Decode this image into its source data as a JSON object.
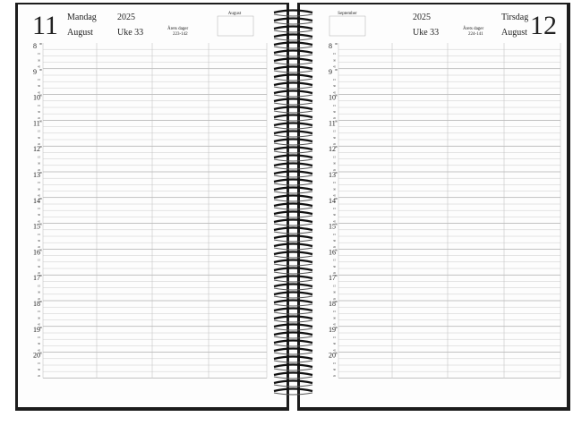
{
  "left": {
    "day": "11",
    "weekday": "Mandag",
    "month": "August",
    "year": "2025",
    "week": "Uke 33",
    "days_label": "Årets dager",
    "days": "223-142",
    "mini_month": "August"
  },
  "right": {
    "day": "12",
    "weekday": "Tirsdag",
    "month": "August",
    "year": "2025",
    "week": "Uke 33",
    "days_label": "Årets dager",
    "days": "224-141",
    "mini_month": "September"
  },
  "hours": [
    "8",
    "9",
    "10",
    "11",
    "12",
    "13",
    "14",
    "15",
    "16",
    "17",
    "18",
    "19",
    "20"
  ],
  "minutes": [
    "00",
    "15",
    "30",
    "45"
  ]
}
